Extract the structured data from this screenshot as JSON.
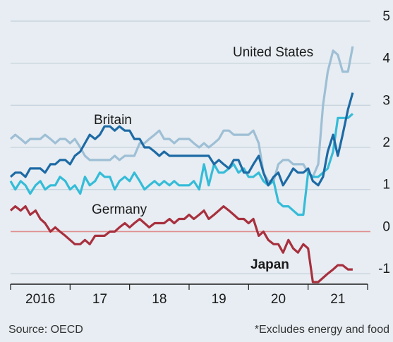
{
  "chart_data": {
    "type": "line",
    "source": "Source: OECD",
    "note": "*Excludes energy and food",
    "x": [
      2016,
      2016.08,
      2016.17,
      2016.25,
      2016.33,
      2016.42,
      2016.5,
      2016.58,
      2016.67,
      2016.75,
      2016.83,
      2016.92,
      2017,
      2017.08,
      2017.17,
      2017.25,
      2017.33,
      2017.42,
      2017.5,
      2017.58,
      2017.67,
      2017.75,
      2017.83,
      2017.92,
      2018,
      2018.08,
      2018.17,
      2018.25,
      2018.33,
      2018.42,
      2018.5,
      2018.58,
      2018.67,
      2018.75,
      2018.83,
      2018.92,
      2019,
      2019.08,
      2019.17,
      2019.25,
      2019.33,
      2019.42,
      2019.5,
      2019.58,
      2019.67,
      2019.75,
      2019.83,
      2019.92,
      2020,
      2020.08,
      2020.17,
      2020.25,
      2020.33,
      2020.42,
      2020.5,
      2020.58,
      2020.67,
      2020.75,
      2020.83,
      2020.92,
      2021,
      2021.08,
      2021.17,
      2021.25,
      2021.33,
      2021.42,
      2021.5,
      2021.58,
      2021.67,
      2021.75
    ],
    "series": [
      {
        "name": "United States",
        "color": "#9ebfd5",
        "values": [
          2.2,
          2.3,
          2.2,
          2.1,
          2.2,
          2.2,
          2.2,
          2.3,
          2.2,
          2.1,
          2.2,
          2.2,
          2.1,
          2.2,
          2.0,
          1.8,
          1.7,
          1.7,
          1.7,
          1.7,
          1.7,
          1.8,
          1.7,
          1.8,
          1.8,
          1.8,
          2.1,
          2.1,
          2.2,
          2.3,
          2.4,
          2.2,
          2.2,
          2.1,
          2.2,
          2.2,
          2.2,
          2.1,
          2.0,
          2.1,
          2.0,
          2.1,
          2.2,
          2.4,
          2.4,
          2.3,
          2.3,
          2.3,
          2.3,
          2.4,
          2.1,
          1.4,
          1.2,
          1.2,
          1.6,
          1.7,
          1.7,
          1.6,
          1.6,
          1.6,
          1.4,
          1.3,
          1.6,
          3.0,
          3.8,
          4.3,
          4.2,
          3.8,
          3.8,
          4.4
        ]
      },
      {
        "name": "Britain",
        "color": "#1d6aa5",
        "values": [
          1.3,
          1.4,
          1.4,
          1.3,
          1.5,
          1.5,
          1.5,
          1.4,
          1.6,
          1.6,
          1.7,
          1.7,
          1.6,
          1.8,
          1.9,
          2.1,
          2.3,
          2.2,
          2.3,
          2.5,
          2.5,
          2.4,
          2.5,
          2.4,
          2.4,
          2.2,
          2.2,
          2.0,
          2.0,
          1.9,
          1.8,
          1.9,
          1.8,
          1.8,
          1.8,
          1.8,
          1.8,
          1.8,
          1.8,
          1.8,
          1.8,
          1.6,
          1.7,
          1.6,
          1.5,
          1.7,
          1.7,
          1.4,
          1.4,
          1.6,
          1.8,
          1.4,
          1.1,
          1.3,
          1.4,
          1.1,
          1.3,
          1.5,
          1.4,
          1.4,
          1.5,
          1.2,
          1.1,
          1.3,
          1.9,
          2.3,
          1.8,
          2.3,
          2.9,
          3.3
        ]
      },
      {
        "name": "Germany",
        "color": "#35bcd8",
        "values": [
          1.2,
          1.0,
          1.2,
          1.1,
          0.9,
          1.1,
          1.2,
          1.0,
          1.1,
          1.1,
          1.3,
          1.2,
          1.0,
          1.1,
          0.9,
          1.3,
          1.1,
          1.2,
          1.4,
          1.3,
          1.3,
          1.0,
          1.2,
          1.3,
          1.2,
          1.4,
          1.2,
          1.0,
          1.1,
          1.2,
          1.1,
          1.2,
          1.1,
          1.2,
          1.1,
          1.1,
          1.1,
          1.2,
          1.0,
          1.6,
          1.1,
          1.6,
          1.4,
          1.4,
          1.5,
          1.6,
          1.4,
          1.5,
          1.3,
          1.3,
          1.4,
          1.2,
          1.1,
          1.2,
          0.7,
          0.6,
          0.6,
          0.5,
          0.4,
          0.4,
          1.4,
          1.3,
          1.3,
          1.4,
          1.5,
          1.9,
          2.7,
          2.7,
          2.7,
          2.8
        ]
      },
      {
        "name": "Japan",
        "color": "#a8303e",
        "values": [
          0.5,
          0.6,
          0.5,
          0.6,
          0.4,
          0.5,
          0.3,
          0.2,
          0.0,
          0.1,
          0.0,
          -0.1,
          -0.2,
          -0.3,
          -0.3,
          -0.2,
          -0.3,
          -0.1,
          -0.1,
          -0.1,
          0.0,
          0.0,
          0.1,
          0.2,
          0.1,
          0.2,
          0.3,
          0.2,
          0.1,
          0.2,
          0.2,
          0.2,
          0.3,
          0.2,
          0.3,
          0.3,
          0.4,
          0.3,
          0.4,
          0.5,
          0.3,
          0.4,
          0.5,
          0.6,
          0.5,
          0.4,
          0.3,
          0.3,
          0.2,
          0.3,
          -0.1,
          0.0,
          -0.2,
          -0.3,
          -0.3,
          -0.5,
          -0.2,
          -0.4,
          -0.5,
          -0.3,
          -0.4,
          -1.2,
          -1.2,
          -1.1,
          -1.0,
          -0.9,
          -0.8,
          -0.8,
          -0.9,
          -0.9
        ]
      }
    ],
    "xlim": [
      2016,
      2022
    ],
    "xticks": [
      {
        "value": 2016.5,
        "label": "2016"
      },
      {
        "value": 2017.5,
        "label": "17"
      },
      {
        "value": 2018.5,
        "label": "18"
      },
      {
        "value": 2019.5,
        "label": "19"
      },
      {
        "value": 2020.5,
        "label": "20"
      },
      {
        "value": 2021.5,
        "label": "21"
      }
    ],
    "xminor_ticks": [
      2016,
      2017,
      2018,
      2019,
      2020,
      2021,
      2022
    ],
    "ylim": [
      -1.25,
      5.1
    ],
    "yticks": [
      5,
      4,
      3,
      2,
      1,
      0,
      -1
    ],
    "grid": true,
    "zero_line_color": "#e08c8c"
  }
}
